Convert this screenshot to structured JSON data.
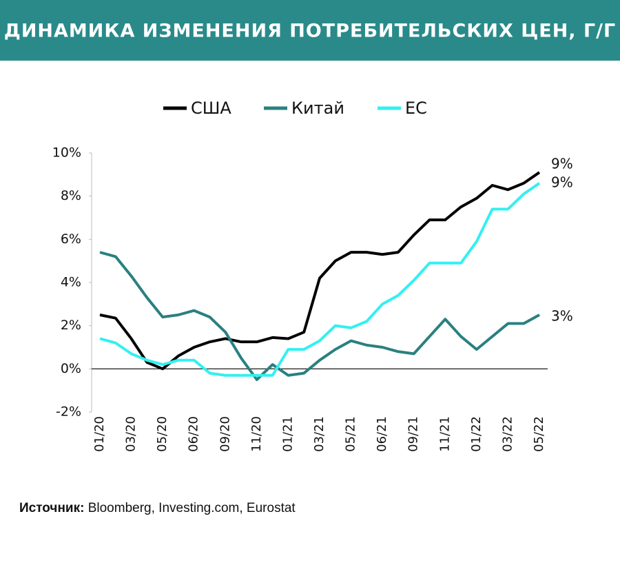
{
  "chart_data": {
    "type": "line",
    "title": "ДИНАМИКА ИЗМЕНЕНИЯ ПОТРЕБИТЕЛЬСКИХ ЦЕН, Г/Г",
    "categories": [
      "01/20",
      null,
      "03/20",
      null,
      "05/20",
      null,
      "06/20",
      null,
      "09/20",
      null,
      "11/20",
      null,
      "01/21",
      null,
      "03/21",
      null,
      "05/21",
      null,
      "06/21",
      null,
      "09/21",
      null,
      "11/21",
      null,
      "01/22",
      null,
      "03/22",
      null,
      "05/22"
    ],
    "series": [
      {
        "name": "США",
        "color": "#000000",
        "values": [
          2.5,
          2.35,
          1.4,
          0.3,
          0.0,
          0.6,
          1.0,
          1.25,
          1.4,
          1.25,
          1.25,
          1.45,
          1.4,
          1.7,
          4.2,
          5.0,
          5.4,
          5.4,
          5.3,
          5.4,
          6.2,
          6.9,
          6.9,
          7.5,
          7.9,
          8.5,
          8.3,
          8.6,
          9.1
        ],
        "value_labels": [
          null,
          null,
          null,
          null,
          null,
          null,
          null,
          null,
          null,
          null,
          null,
          null,
          null,
          null,
          null,
          null,
          null,
          null,
          null,
          null,
          null,
          null,
          null,
          null,
          null,
          null,
          null,
          null,
          "9%"
        ]
      },
      {
        "name": "Китай",
        "color": "#2a8080",
        "values": [
          5.4,
          5.2,
          4.3,
          3.3,
          2.4,
          2.5,
          2.7,
          2.4,
          1.7,
          0.5,
          -0.5,
          0.2,
          -0.3,
          -0.2,
          0.4,
          0.9,
          1.3,
          1.1,
          1.0,
          0.8,
          0.7,
          1.5,
          2.3,
          1.5,
          0.9,
          1.5,
          2.1,
          2.1,
          2.5
        ],
        "value_labels": [
          null,
          null,
          null,
          null,
          null,
          null,
          null,
          null,
          null,
          null,
          null,
          null,
          null,
          null,
          null,
          null,
          null,
          null,
          null,
          null,
          null,
          null,
          null,
          null,
          null,
          null,
          null,
          null,
          "3%"
        ]
      },
      {
        "name": "ЕС",
        "color": "#33f0f0",
        "values": [
          1.4,
          1.2,
          0.7,
          0.4,
          0.2,
          0.4,
          0.4,
          -0.2,
          -0.3,
          -0.3,
          -0.3,
          -0.3,
          0.9,
          0.9,
          1.3,
          2.0,
          1.9,
          2.2,
          3.0,
          3.4,
          4.1,
          4.9,
          4.9,
          4.9,
          5.9,
          7.4,
          7.4,
          8.1,
          8.6
        ],
        "value_labels": [
          null,
          null,
          null,
          null,
          null,
          null,
          null,
          null,
          null,
          null,
          null,
          null,
          null,
          null,
          null,
          null,
          null,
          null,
          null,
          null,
          null,
          null,
          null,
          null,
          null,
          null,
          null,
          null,
          "9%"
        ]
      }
    ],
    "ylim": [
      -2,
      10
    ],
    "yticks": [
      {
        "value": -2,
        "label": "-2%"
      },
      {
        "value": 0,
        "label": "0%"
      },
      {
        "value": 2,
        "label": "2%"
      },
      {
        "value": 4,
        "label": "4%"
      },
      {
        "value": 6,
        "label": "6%"
      },
      {
        "value": 8,
        "label": "8%"
      },
      {
        "value": 10,
        "label": "10%"
      }
    ],
    "legend": "top",
    "source_label": "Источник:",
    "source": "Bloomberg, Investing.com, Eurostat"
  }
}
